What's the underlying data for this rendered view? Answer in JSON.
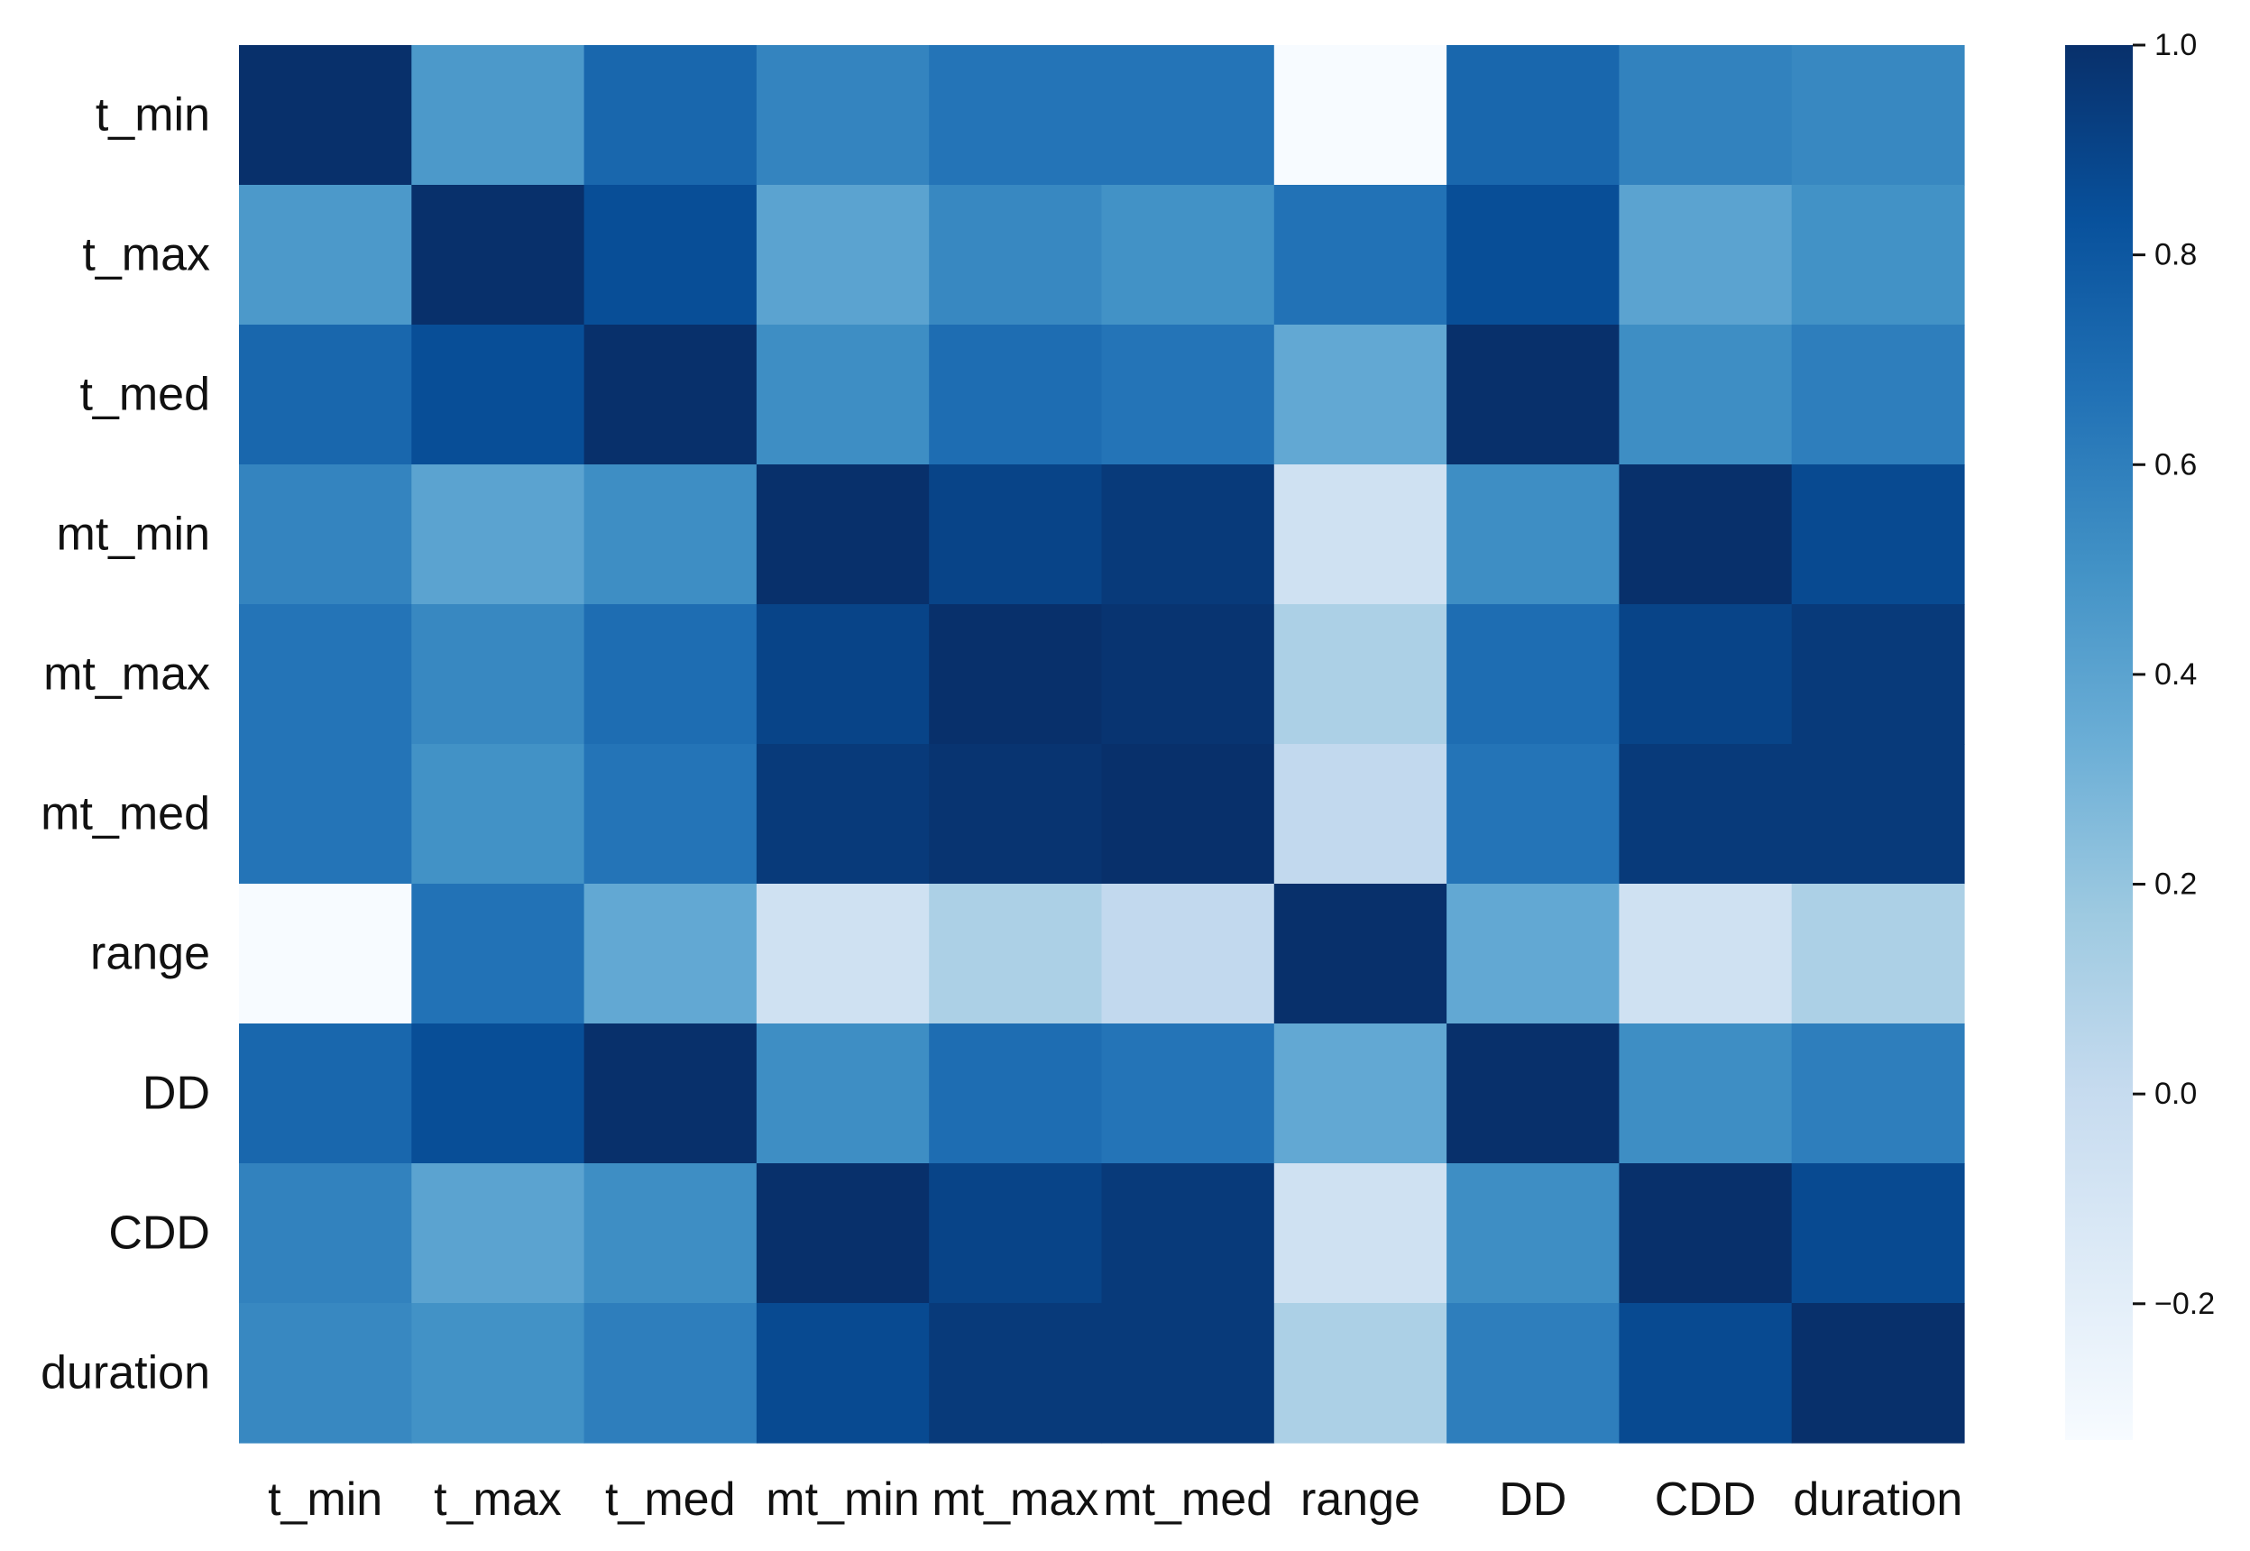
{
  "chart_data": {
    "type": "heatmap",
    "title": "",
    "xlabel": "",
    "ylabel": "",
    "rows": [
      "t_min",
      "t_max",
      "t_med",
      "mt_min",
      "mt_max",
      "mt_med",
      "range",
      "DD",
      "CDD",
      "duration"
    ],
    "columns": [
      "t_min",
      "t_max",
      "t_med",
      "mt_min",
      "mt_max",
      "mt_med",
      "range",
      "DD",
      "CDD",
      "duration"
    ],
    "values": [
      [
        1.0,
        0.46,
        0.72,
        0.57,
        0.65,
        0.65,
        -0.33,
        0.72,
        0.58,
        0.55
      ],
      [
        0.46,
        1.0,
        0.85,
        0.4,
        0.55,
        0.5,
        0.66,
        0.85,
        0.4,
        0.5
      ],
      [
        0.72,
        0.85,
        1.0,
        0.52,
        0.69,
        0.65,
        0.37,
        1.0,
        0.52,
        0.6
      ],
      [
        0.57,
        0.4,
        0.52,
        1.0,
        0.9,
        0.95,
        -0.06,
        0.52,
        1.0,
        0.87
      ],
      [
        0.65,
        0.55,
        0.69,
        0.9,
        1.0,
        0.98,
        0.11,
        0.69,
        0.9,
        0.95
      ],
      [
        0.65,
        0.5,
        0.65,
        0.95,
        0.98,
        1.0,
        0.02,
        0.65,
        0.95,
        0.95
      ],
      [
        -0.33,
        0.66,
        0.37,
        -0.06,
        0.11,
        0.02,
        1.0,
        0.37,
        -0.06,
        0.11
      ],
      [
        0.72,
        0.85,
        1.0,
        0.52,
        0.69,
        0.65,
        0.37,
        1.0,
        0.52,
        0.6
      ],
      [
        0.58,
        0.4,
        0.52,
        1.0,
        0.9,
        0.95,
        -0.06,
        0.52,
        1.0,
        0.87
      ],
      [
        0.55,
        0.5,
        0.6,
        0.87,
        0.95,
        0.95,
        0.11,
        0.6,
        0.87,
        1.0
      ]
    ],
    "colorbar": {
      "min": -0.33,
      "max": 1.0,
      "ticks": [
        1.0,
        0.8,
        0.6,
        0.4,
        0.2,
        0.0,
        -0.2
      ],
      "tick_labels": [
        "1.0",
        "0.8",
        "0.6",
        "0.4",
        "0.2",
        "0.0",
        "−0.2"
      ],
      "colormap": "Blues",
      "stops": [
        "#f7fbff",
        "#deebf7",
        "#c6dbef",
        "#9ecae1",
        "#6baed6",
        "#4292c6",
        "#2171b5",
        "#08519c",
        "#08306b"
      ]
    },
    "grid": false
  }
}
